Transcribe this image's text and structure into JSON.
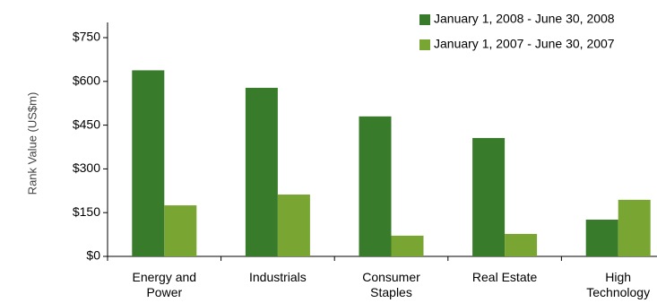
{
  "chart_data": {
    "type": "bar",
    "y_label": "Rank Value (US$m)",
    "categories": [
      "Energy and Power",
      "Industrials",
      "Consumer Staples",
      "Real Estate",
      "High Technology"
    ],
    "series": [
      {
        "name": "January 1, 2008 - June 30, 2008",
        "color": "#387b2b",
        "values": [
          638,
          578,
          480,
          406,
          126
        ]
      },
      {
        "name": "January 1, 2007 - June 30, 2007",
        "color": "#79a533",
        "values": [
          175,
          212,
          71,
          77,
          194
        ]
      }
    ],
    "ylim": [
      0,
      750
    ],
    "yticks": [
      {
        "value": 0,
        "label": "$0"
      },
      {
        "value": 150,
        "label": "$150"
      },
      {
        "value": 300,
        "label": "$300"
      },
      {
        "value": 450,
        "label": "$450"
      },
      {
        "value": 600,
        "label": "$600"
      },
      {
        "value": 750,
        "label": "$750"
      }
    ],
    "legend": "top-right"
  }
}
